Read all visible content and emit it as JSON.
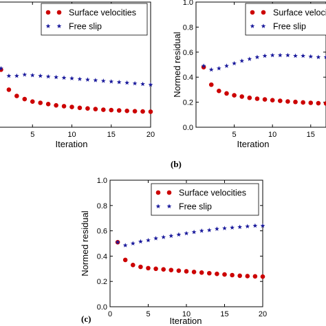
{
  "chart_data": [
    {
      "type": "scatter",
      "panel_label": "",
      "xlabel": "Iteration",
      "ylabel": "",
      "xlim": [
        0,
        20
      ],
      "ylim": [
        0,
        1.0
      ],
      "x_ticks": [
        "5",
        "10",
        "15",
        "20"
      ],
      "y_ticks": [],
      "legend_placement": "top-right",
      "grid": false,
      "series": [
        {
          "name": "Surface velocities",
          "color": "#cc0000",
          "marker": "circle",
          "x": [
            1,
            2,
            3,
            4,
            5,
            6,
            7,
            8,
            9,
            10,
            11,
            12,
            13,
            14,
            15,
            16,
            17,
            18,
            19,
            20
          ],
          "y": [
            0.46,
            0.3,
            0.25,
            0.225,
            0.205,
            0.195,
            0.185,
            0.175,
            0.168,
            0.162,
            0.155,
            0.15,
            0.145,
            0.14,
            0.137,
            0.134,
            0.131,
            0.128,
            0.126,
            0.124
          ]
        },
        {
          "name": "Free slip",
          "color": "#1a1a9c",
          "marker": "star",
          "x": [
            1,
            2,
            3,
            4,
            5,
            6,
            7,
            8,
            9,
            10,
            11,
            12,
            13,
            14,
            15,
            16,
            17,
            18,
            19,
            20
          ],
          "y": [
            0.47,
            0.41,
            0.41,
            0.42,
            0.415,
            0.41,
            0.405,
            0.4,
            0.395,
            0.39,
            0.385,
            0.38,
            0.375,
            0.37,
            0.365,
            0.36,
            0.355,
            0.35,
            0.345,
            0.34
          ]
        }
      ]
    },
    {
      "type": "scatter",
      "panel_label": "(b)",
      "xlabel": "Iteration",
      "ylabel": "Normed residual",
      "xlim": [
        0,
        17
      ],
      "ylim": [
        0,
        1.0
      ],
      "x_ticks": [
        "5",
        "10",
        "15"
      ],
      "y_ticks": [
        "0.0",
        "0.2",
        "0.4",
        "0.6",
        "0.8",
        "1.0"
      ],
      "legend_placement": "top-right",
      "grid": false,
      "series": [
        {
          "name": "Surface velocities",
          "color": "#cc0000",
          "marker": "circle",
          "x": [
            1,
            2,
            3,
            4,
            5,
            6,
            7,
            8,
            9,
            10,
            11,
            12,
            13,
            14,
            15,
            16,
            17
          ],
          "y": [
            0.48,
            0.34,
            0.29,
            0.27,
            0.255,
            0.245,
            0.235,
            0.228,
            0.222,
            0.216,
            0.211,
            0.206,
            0.202,
            0.198,
            0.195,
            0.192,
            0.19
          ]
        },
        {
          "name": "Free slip",
          "color": "#1a1a9c",
          "marker": "star",
          "x": [
            1,
            2,
            3,
            4,
            5,
            6,
            7,
            8,
            9,
            10,
            11,
            12,
            13,
            14,
            15,
            16,
            17
          ],
          "y": [
            0.49,
            0.46,
            0.47,
            0.49,
            0.51,
            0.53,
            0.545,
            0.56,
            0.57,
            0.575,
            0.575,
            0.575,
            0.57,
            0.57,
            0.565,
            0.56,
            0.56
          ]
        }
      ]
    },
    {
      "type": "scatter",
      "panel_label": "(c)",
      "xlabel": "Iteration",
      "ylabel": "Normed residual",
      "xlim": [
        0,
        20
      ],
      "ylim": [
        0,
        1.0
      ],
      "x_ticks": [
        "0",
        "5",
        "10",
        "15",
        "20"
      ],
      "y_ticks": [
        "0.0",
        "0.2",
        "0.4",
        "0.6",
        "0.8",
        "1.0"
      ],
      "legend_placement": "top-right",
      "grid": false,
      "series": [
        {
          "name": "Surface velocities",
          "color": "#cc0000",
          "marker": "circle",
          "x": [
            1,
            2,
            3,
            4,
            5,
            6,
            7,
            8,
            9,
            10,
            11,
            12,
            13,
            14,
            15,
            16,
            17,
            18,
            19,
            20
          ],
          "y": [
            0.51,
            0.37,
            0.33,
            0.315,
            0.305,
            0.3,
            0.295,
            0.29,
            0.285,
            0.28,
            0.275,
            0.27,
            0.265,
            0.26,
            0.255,
            0.25,
            0.245,
            0.242,
            0.24,
            0.238
          ]
        },
        {
          "name": "Free slip",
          "color": "#1a1a9c",
          "marker": "star",
          "x": [
            1,
            2,
            3,
            4,
            5,
            6,
            7,
            8,
            9,
            10,
            11,
            12,
            13,
            14,
            15,
            16,
            17,
            18,
            19,
            20
          ],
          "y": [
            0.51,
            0.485,
            0.5,
            0.515,
            0.525,
            0.54,
            0.55,
            0.56,
            0.57,
            0.58,
            0.59,
            0.6,
            0.605,
            0.615,
            0.62,
            0.625,
            0.63,
            0.635,
            0.64,
            0.64
          ]
        }
      ]
    }
  ]
}
